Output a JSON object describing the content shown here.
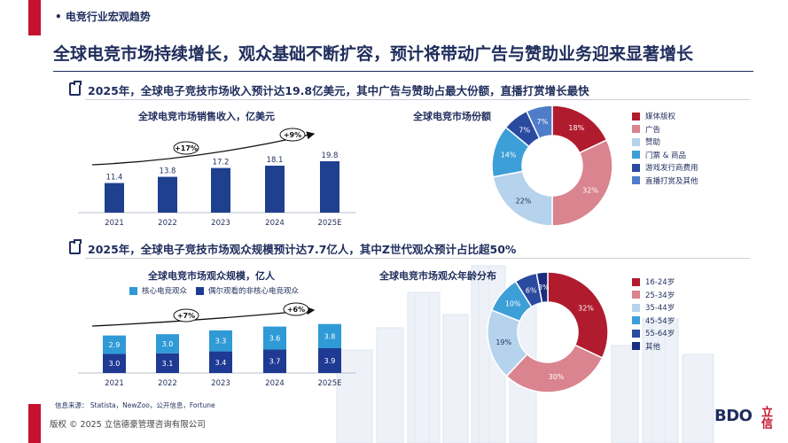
{
  "header": {
    "section_label": "• 电竞行业宏观趋势",
    "title": "全球电竞市场持续增长，观众基础不断扩容，预计将带动广告与赞助业务迎来显著增长"
  },
  "section1": {
    "heading": "2025年，全球电子竞技市场收入预计达19.8亿美元，其中广告与赞助占最大份额，直播打赏增长最快"
  },
  "section2": {
    "heading": "2025年，全球电子竞技市场观众规模预计达7.7亿人，其中Z世代观众预计占比超50%"
  },
  "colors": {
    "navy": "#1f2d5c",
    "red": "#c4122f",
    "bar_revenue": "#1f3f8f",
    "bar_core": "#2f9ad6",
    "bar_casual": "#1f3a93"
  },
  "chart_data": [
    {
      "type": "bar",
      "title": "全球电竞市场销售收入，亿美元",
      "categories": [
        "2021",
        "2022",
        "2023",
        "2024",
        "2025E"
      ],
      "values": [
        11.4,
        13.8,
        17.2,
        18.1,
        19.8
      ],
      "value_labels": [
        "11.4",
        "13.8",
        "17.2",
        "18.1",
        "19.8"
      ],
      "annotations": [
        "+17%",
        "+9%"
      ]
    },
    {
      "type": "pie",
      "title": "全球电竞市场份额",
      "labels": [
        "媒体版权",
        "广告",
        "赞助",
        "门票 & 商品",
        "游戏发行商费用",
        "直播打赏及其他"
      ],
      "values": [
        18,
        32,
        22,
        14,
        7,
        7
      ],
      "value_labels": [
        "18%",
        "32%",
        "22%",
        "14%",
        "7%",
        "7%"
      ],
      "colors": [
        "#b01c2e",
        "#d9848e",
        "#b5d3ec",
        "#3d9fd8",
        "#2a4aa0",
        "#4f7dc9"
      ]
    },
    {
      "type": "bar",
      "title": "全球电竞市场观众规模，亿人",
      "categories": [
        "2021",
        "2022",
        "2023",
        "2024",
        "2025E"
      ],
      "series": [
        {
          "name": "偶尔观看的非核心电竞观众",
          "values": [
            3.0,
            3.1,
            3.4,
            3.7,
            3.9
          ],
          "labels": [
            "3.0",
            "3.1",
            "3.4",
            "3.7",
            "3.9"
          ]
        },
        {
          "name": "核心电竞观众",
          "values": [
            2.9,
            3.0,
            3.3,
            3.6,
            3.8
          ],
          "labels": [
            "2.9",
            "3.0",
            "3.3",
            "3.6",
            "3.8"
          ]
        }
      ],
      "legend": [
        "核心电竞观众",
        "偶尔观看的非核心电竞观众"
      ],
      "annotations": [
        "+7%",
        "+6%"
      ]
    },
    {
      "type": "pie",
      "title": "全球电竞市场观众年龄分布",
      "labels": [
        "16-24岁",
        "25-34岁",
        "35-44岁",
        "45-54岁",
        "55-64岁",
        "其他"
      ],
      "values": [
        32,
        30,
        19,
        10,
        6,
        3
      ],
      "value_labels": [
        "32%",
        "30%",
        "19%",
        "10%",
        "6%",
        "3%"
      ],
      "colors": [
        "#b01c2e",
        "#d9848e",
        "#b5d3ec",
        "#3d9fd8",
        "#2a4aa0",
        "#1b2d80"
      ]
    }
  ],
  "footer": {
    "source": "信息来源： Statista，NewZoo，公开信息，Fortune",
    "copyright": "版权 © 2025 立信德豪管理咨询有限公司",
    "logo": "BDO",
    "logo_cn": "立信"
  }
}
